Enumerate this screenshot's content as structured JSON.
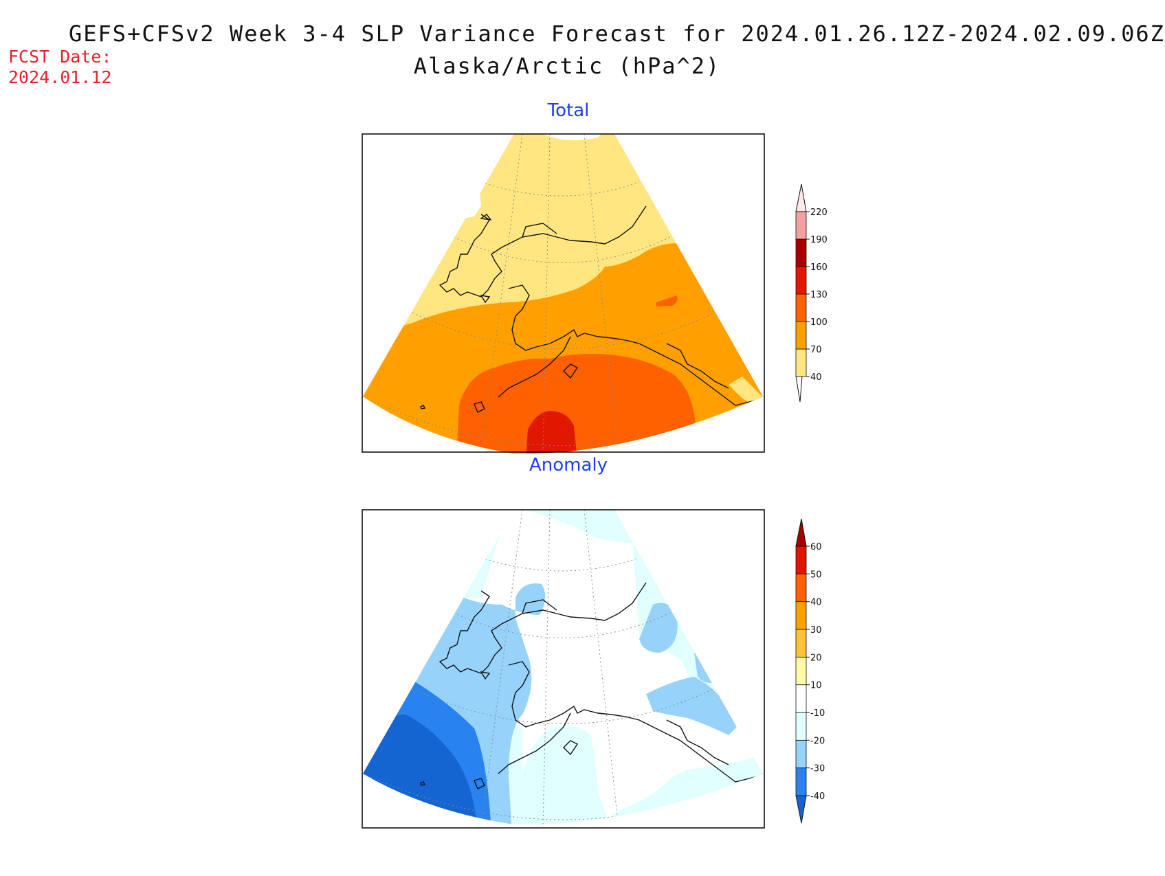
{
  "header": {
    "title": "GEFS+CFSv2 Week 3-4 SLP Variance Forecast for 2024.01.26.12Z-2024.02.09.06Z",
    "subtitle": "Alaska/Arctic (hPa^2)",
    "fcst_label": "FCST Date:",
    "fcst_date": "2024.01.12"
  },
  "panels": {
    "total": {
      "title": "Total",
      "colorbar": {
        "levels": [
          "40",
          "70",
          "100",
          "130",
          "160",
          "190",
          "220"
        ],
        "colors": [
          "#ffe680",
          "#ffa000",
          "#ff6000",
          "#e01800",
          "#a80000",
          "#f4a0a0",
          "#ffe8e8"
        ]
      }
    },
    "anomaly": {
      "title": "Anomaly",
      "colorbar": {
        "levels": [
          "-40",
          "-30",
          "-20",
          "-10",
          "10",
          "20",
          "30",
          "40",
          "50",
          "60"
        ],
        "colors": [
          "#1464d2",
          "#2882f0",
          "#96d2fa",
          "#e1ffff",
          "#ffffff",
          "#fffaaa",
          "#ffc03c",
          "#ffa000",
          "#ff6000",
          "#e11400",
          "#a50000"
        ]
      }
    }
  }
}
